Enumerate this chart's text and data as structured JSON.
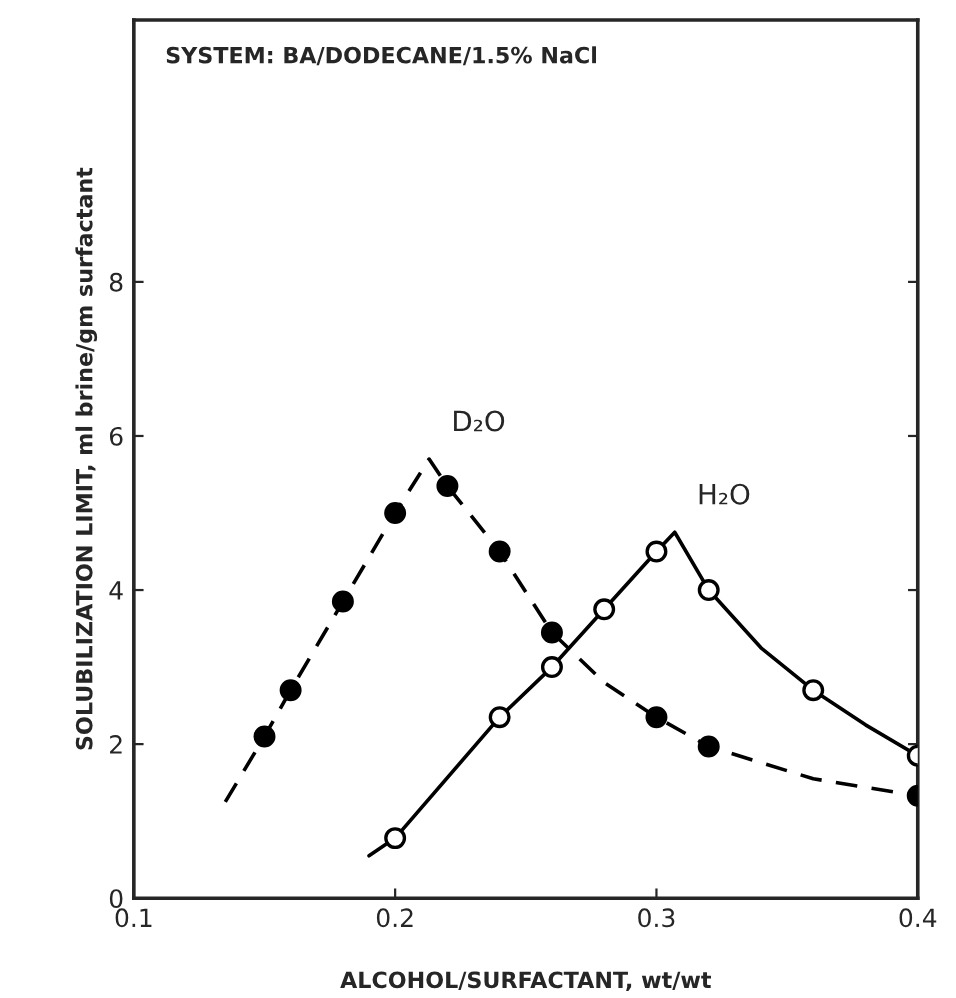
{
  "chart_data": {
    "type": "line",
    "xlabel": "ALCOHOL/SURFACTANT, wt/wt",
    "ylabel": "SOLUBILIZATION LIMIT, ml brine/gm surfactant",
    "annotations": [
      "SYSTEM: BA/DODECANE/1.5% NaCl"
    ],
    "xlim": [
      0.1,
      0.4
    ],
    "xticks": [
      0.1,
      0.2,
      0.3,
      0.4
    ],
    "ylim": [
      0,
      11.4
    ],
    "yticks": [
      0,
      2,
      4,
      6,
      8
    ],
    "grid": false,
    "legend": false,
    "series": [
      {
        "name": "D₂O",
        "line_style": "dashed",
        "marker": "none",
        "color": "#000000",
        "x": [
          0.135,
          0.15,
          0.16,
          0.18,
          0.2,
          0.213,
          0.22,
          0.24,
          0.26,
          0.28,
          0.3,
          0.32,
          0.36,
          0.4
        ],
        "values": [
          1.25,
          2.1,
          2.7,
          3.85,
          5.0,
          5.7,
          5.35,
          4.5,
          3.45,
          2.8,
          2.35,
          1.97,
          1.55,
          1.33
        ]
      },
      {
        "type": "scatter",
        "marker": "circle",
        "color": "#000000",
        "x": [
          0.15,
          0.16,
          0.18,
          0.2,
          0.22,
          0.24,
          0.26,
          0.3,
          0.32,
          0.4
        ],
        "values": [
          2.1,
          2.7,
          3.85,
          5.0,
          5.35,
          4.5,
          3.45,
          2.35,
          1.97,
          1.33
        ]
      },
      {
        "name": "H₂O",
        "line_style": "solid",
        "marker": "none",
        "color": "#000000",
        "x": [
          0.19,
          0.2,
          0.24,
          0.26,
          0.28,
          0.3,
          0.307,
          0.32,
          0.34,
          0.36,
          0.38,
          0.4
        ],
        "values": [
          0.55,
          0.78,
          2.35,
          3.0,
          3.75,
          4.5,
          4.75,
          4.0,
          3.25,
          2.7,
          2.25,
          1.85
        ]
      },
      {
        "type": "scatter",
        "marker": "circle",
        "color": "#ffffff",
        "x": [
          0.2,
          0.24,
          0.26,
          0.28,
          0.3,
          0.32,
          0.36,
          0.4
        ],
        "values": [
          0.78,
          2.35,
          3.0,
          3.75,
          4.5,
          4.0,
          2.7,
          1.85
        ]
      }
    ]
  }
}
